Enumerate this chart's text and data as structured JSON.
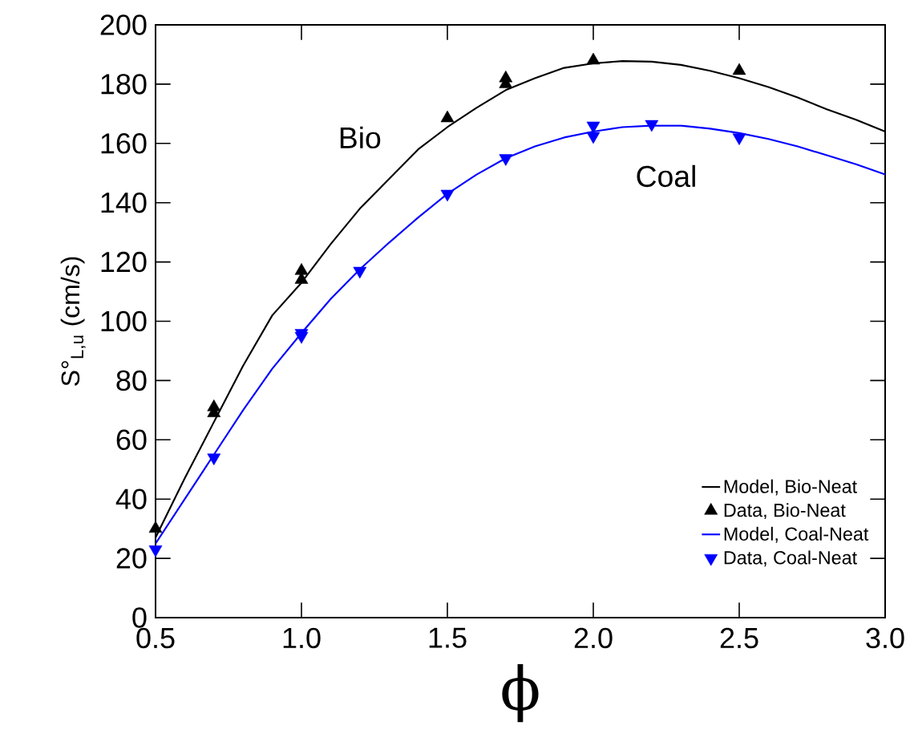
{
  "chart_data": {
    "type": "line",
    "xlabel": "ϕ",
    "ylabel": "S°$_{L,u}$ (cm/s)",
    "xlim": [
      0.5,
      3.0
    ],
    "ylim": [
      0,
      200
    ],
    "xticks": [
      {
        "value": 0.5,
        "label": "0.5"
      },
      {
        "value": 1.0,
        "label": "1.0"
      },
      {
        "value": 1.5,
        "label": "1.5"
      },
      {
        "value": 2.0,
        "label": "2.0"
      },
      {
        "value": 2.5,
        "label": "2.5"
      },
      {
        "value": 3.0,
        "label": "3.0"
      }
    ],
    "yticks": [
      0,
      20,
      40,
      60,
      80,
      100,
      120,
      140,
      160,
      180,
      200
    ],
    "legend": "bottom right",
    "grid": false,
    "annotations": [
      "Bio",
      "Coal"
    ],
    "series": [
      {
        "name": "Model, Bio-Neat",
        "color": "#000000",
        "marker": "none",
        "line_style": "solid",
        "x": [
          0.5,
          0.6,
          0.7,
          0.8,
          0.9,
          1.0,
          1.1,
          1.2,
          1.3,
          1.4,
          1.5,
          1.6,
          1.7,
          1.8,
          1.9,
          2.0,
          2.1,
          2.2,
          2.3,
          2.4,
          2.5,
          2.6,
          2.7,
          2.8,
          2.9,
          3.0
        ],
        "values": [
          27,
          47,
          66,
          85,
          102,
          113,
          126,
          138,
          148,
          158,
          165.5,
          172,
          178,
          182,
          185.5,
          187,
          187.8,
          187.6,
          186.5,
          184.5,
          182,
          179,
          175.5,
          171.5,
          168,
          164
        ]
      },
      {
        "name": "Data, Bio-Neat",
        "type": "scatter",
        "color": "#000000",
        "marker": "triangle",
        "x": [
          0.5,
          0.7,
          0.7,
          1.0,
          1.0,
          1.5,
          1.7,
          1.7,
          2.0,
          2.5
        ],
        "values": [
          30,
          71,
          69,
          117,
          114,
          168.5,
          182,
          180,
          188,
          184.5
        ]
      },
      {
        "name": "Model, Coal-Neat",
        "color": "#0000ff",
        "marker": "none",
        "line_style": "solid",
        "x": [
          0.5,
          0.6,
          0.7,
          0.8,
          0.9,
          1.0,
          1.1,
          1.2,
          1.3,
          1.4,
          1.5,
          1.6,
          1.7,
          1.8,
          1.9,
          2.0,
          2.1,
          2.2,
          2.3,
          2.4,
          2.5,
          2.6,
          2.7,
          2.8,
          2.9,
          3.0
        ],
        "values": [
          25,
          40,
          55,
          70,
          84,
          96,
          107.5,
          117.5,
          126.5,
          135,
          143,
          149.5,
          155,
          159,
          162,
          164,
          165.5,
          166,
          166,
          165,
          163.5,
          161.5,
          159,
          156,
          153,
          149.5
        ]
      },
      {
        "name": "Data, Coal-Neat",
        "type": "scatter",
        "color": "#0000ff",
        "marker": "triangle-down",
        "x": [
          0.5,
          0.7,
          1.0,
          1.0,
          1.2,
          1.5,
          1.7,
          2.0,
          2.0,
          2.2,
          2.5
        ],
        "values": [
          23,
          54,
          96,
          95,
          117,
          143,
          155,
          166,
          162.5,
          166.5,
          162
        ]
      }
    ]
  }
}
